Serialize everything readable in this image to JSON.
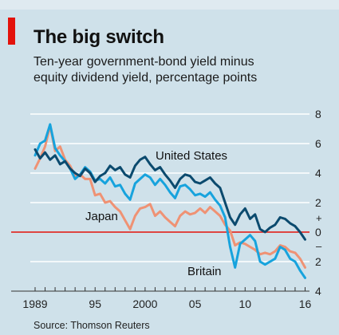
{
  "title": "The big switch",
  "subtitle_lines": [
    "Ten-year government-bond yield minus",
    "equity dividend yield, percentage points"
  ],
  "source": "Source: Thomson Reuters",
  "colors": {
    "background": "#cfe1ea",
    "accent": "#e3120b",
    "united_states": "#0b4a6e",
    "britain": "#17a3dd",
    "japan": "#ef9274",
    "zero_line": "#e3120b",
    "gridline": "#ffffff"
  },
  "chart_data": {
    "type": "line",
    "xlim": [
      1989,
      2016.2
    ],
    "ylim": [
      -4,
      8
    ],
    "x_ticks": [
      {
        "value": 1989,
        "label": "1989"
      },
      {
        "value": 1995,
        "label": "95"
      },
      {
        "value": 2000,
        "label": "2000"
      },
      {
        "value": 2005,
        "label": "05"
      },
      {
        "value": 2010,
        "label": "10"
      },
      {
        "value": 2016,
        "label": "16"
      }
    ],
    "y_ticks": [
      {
        "value": 8,
        "label": "8"
      },
      {
        "value": 6,
        "label": "6"
      },
      {
        "value": 4,
        "label": "4"
      },
      {
        "value": 2,
        "label": "2"
      },
      {
        "value": 0,
        "label": "0"
      },
      {
        "value": -2,
        "label": "2"
      },
      {
        "value": -4,
        "label": "4"
      }
    ],
    "y_sign_labels": {
      "plus": "+",
      "minus": "–"
    },
    "grid": true,
    "series": [
      {
        "name": "Japan",
        "color": "#ef9274",
        "points": [
          [
            1989,
            4.3
          ],
          [
            1989.5,
            5.0
          ],
          [
            1990,
            5.8
          ],
          [
            1990.5,
            7.2
          ],
          [
            1991,
            5.5
          ],
          [
            1991.5,
            5.8
          ],
          [
            1992,
            4.9
          ],
          [
            1992.5,
            4.5
          ],
          [
            1993,
            3.8
          ],
          [
            1993.5,
            3.9
          ],
          [
            1994,
            3.6
          ],
          [
            1994.5,
            3.6
          ],
          [
            1995,
            2.5
          ],
          [
            1995.5,
            2.6
          ],
          [
            1996,
            2.0
          ],
          [
            1996.5,
            2.1
          ],
          [
            1997,
            1.7
          ],
          [
            1997.5,
            1.4
          ],
          [
            1998,
            0.8
          ],
          [
            1998.5,
            0.2
          ],
          [
            1999,
            1.1
          ],
          [
            1999.5,
            1.6
          ],
          [
            2000,
            1.7
          ],
          [
            2000.5,
            1.9
          ],
          [
            2001,
            1.1
          ],
          [
            2001.5,
            1.4
          ],
          [
            2002,
            1.0
          ],
          [
            2002.5,
            0.7
          ],
          [
            2003,
            0.4
          ],
          [
            2003.5,
            1.1
          ],
          [
            2004,
            1.4
          ],
          [
            2004.5,
            1.2
          ],
          [
            2005,
            1.3
          ],
          [
            2005.5,
            1.6
          ],
          [
            2006,
            1.3
          ],
          [
            2006.5,
            1.7
          ],
          [
            2007,
            1.4
          ],
          [
            2007.5,
            1.1
          ],
          [
            2008,
            0.5
          ],
          [
            2008.5,
            0.1
          ],
          [
            2009,
            -0.9
          ],
          [
            2009.5,
            -0.7
          ],
          [
            2010,
            -0.8
          ],
          [
            2010.5,
            -1.0
          ],
          [
            2011,
            -1.2
          ],
          [
            2011.5,
            -1.5
          ],
          [
            2012,
            -1.4
          ],
          [
            2012.5,
            -1.5
          ],
          [
            2013,
            -1.3
          ],
          [
            2013.5,
            -0.9
          ],
          [
            2014,
            -1.0
          ],
          [
            2014.5,
            -1.3
          ],
          [
            2015,
            -1.4
          ],
          [
            2015.5,
            -1.8
          ],
          [
            2016,
            -2.4
          ]
        ]
      },
      {
        "name": "Britain",
        "color": "#17a3dd",
        "points": [
          [
            1989,
            5.2
          ],
          [
            1989.5,
            6.0
          ],
          [
            1990,
            6.2
          ],
          [
            1990.5,
            7.3
          ],
          [
            1991,
            5.7
          ],
          [
            1991.5,
            5.2
          ],
          [
            1992,
            4.8
          ],
          [
            1992.5,
            4.3
          ],
          [
            1993,
            3.6
          ],
          [
            1993.5,
            3.9
          ],
          [
            1994,
            4.4
          ],
          [
            1994.5,
            4.1
          ],
          [
            1995,
            3.5
          ],
          [
            1995.5,
            3.6
          ],
          [
            1996,
            3.3
          ],
          [
            1996.5,
            3.7
          ],
          [
            1997,
            3.1
          ],
          [
            1997.5,
            3.2
          ],
          [
            1998,
            2.6
          ],
          [
            1998.5,
            2.2
          ],
          [
            1999,
            3.3
          ],
          [
            1999.5,
            3.6
          ],
          [
            2000,
            3.9
          ],
          [
            2000.5,
            3.7
          ],
          [
            2001,
            3.2
          ],
          [
            2001.5,
            3.6
          ],
          [
            2002,
            3.2
          ],
          [
            2002.5,
            2.7
          ],
          [
            2003,
            2.3
          ],
          [
            2003.5,
            3.1
          ],
          [
            2004,
            3.2
          ],
          [
            2004.5,
            2.9
          ],
          [
            2005,
            2.5
          ],
          [
            2005.5,
            2.6
          ],
          [
            2006,
            2.4
          ],
          [
            2006.5,
            2.7
          ],
          [
            2007,
            2.2
          ],
          [
            2007.5,
            1.8
          ],
          [
            2008,
            1.0
          ],
          [
            2008.5,
            -1.0
          ],
          [
            2009,
            -2.4
          ],
          [
            2009.5,
            -0.8
          ],
          [
            2010,
            -0.5
          ],
          [
            2010.5,
            -0.2
          ],
          [
            2011,
            -0.6
          ],
          [
            2011.5,
            -2.0
          ],
          [
            2012,
            -2.2
          ],
          [
            2012.5,
            -2.0
          ],
          [
            2013,
            -1.8
          ],
          [
            2013.5,
            -1.0
          ],
          [
            2014,
            -1.2
          ],
          [
            2014.5,
            -1.8
          ],
          [
            2015,
            -2.0
          ],
          [
            2015.5,
            -2.6
          ],
          [
            2016,
            -3.1
          ]
        ]
      },
      {
        "name": "United States",
        "color": "#0b4a6e",
        "points": [
          [
            1989,
            5.6
          ],
          [
            1989.5,
            5.0
          ],
          [
            1990,
            5.4
          ],
          [
            1990.5,
            4.9
          ],
          [
            1991,
            5.2
          ],
          [
            1991.5,
            4.6
          ],
          [
            1992,
            4.8
          ],
          [
            1992.5,
            4.3
          ],
          [
            1993,
            4.0
          ],
          [
            1993.5,
            3.8
          ],
          [
            1994,
            4.3
          ],
          [
            1994.5,
            4.0
          ],
          [
            1995,
            3.4
          ],
          [
            1995.5,
            3.8
          ],
          [
            1996,
            4.0
          ],
          [
            1996.5,
            4.5
          ],
          [
            1997,
            4.2
          ],
          [
            1997.5,
            4.4
          ],
          [
            1998,
            3.9
          ],
          [
            1998.5,
            3.7
          ],
          [
            1999,
            4.5
          ],
          [
            1999.5,
            4.9
          ],
          [
            2000,
            5.1
          ],
          [
            2000.5,
            4.6
          ],
          [
            2001,
            4.2
          ],
          [
            2001.5,
            4.4
          ],
          [
            2002,
            3.9
          ],
          [
            2002.5,
            3.5
          ],
          [
            2003,
            3.0
          ],
          [
            2003.5,
            3.6
          ],
          [
            2004,
            3.9
          ],
          [
            2004.5,
            3.8
          ],
          [
            2005,
            3.4
          ],
          [
            2005.5,
            3.3
          ],
          [
            2006,
            3.5
          ],
          [
            2006.5,
            3.7
          ],
          [
            2007,
            3.3
          ],
          [
            2007.5,
            3.0
          ],
          [
            2008,
            2.0
          ],
          [
            2008.5,
            1.0
          ],
          [
            2009,
            0.5
          ],
          [
            2009.5,
            1.2
          ],
          [
            2010,
            1.6
          ],
          [
            2010.5,
            0.9
          ],
          [
            2011,
            1.2
          ],
          [
            2011.5,
            0.2
          ],
          [
            2012,
            0.0
          ],
          [
            2012.5,
            0.3
          ],
          [
            2013,
            0.5
          ],
          [
            2013.5,
            1.0
          ],
          [
            2014,
            0.9
          ],
          [
            2014.5,
            0.6
          ],
          [
            2015,
            0.4
          ],
          [
            2015.5,
            0.0
          ],
          [
            2016,
            -0.5
          ]
        ]
      }
    ],
    "annotations": [
      {
        "text": "United States",
        "series": "United States"
      },
      {
        "text": "Japan",
        "series": "Japan"
      },
      {
        "text": "Britain",
        "series": "Britain"
      }
    ]
  }
}
